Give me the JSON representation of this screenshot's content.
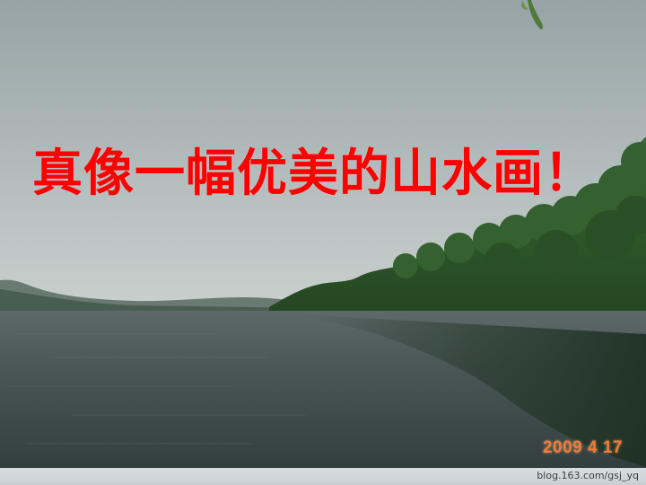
{
  "caption": "真像一幅优美的山水画！",
  "photo_date_stamp": "2009  4  17",
  "watermark": "blog.163.com/gsj_yq",
  "scene": "calm lake with tree-lined shore under overcast sky",
  "colors": {
    "caption": "#ff0000",
    "date_stamp": "#f07a3a",
    "sky_top": "#9aa7a9",
    "sky_horizon": "#c6cdcc",
    "water": "#3c4a4b",
    "trees": "#2f5a2c"
  }
}
